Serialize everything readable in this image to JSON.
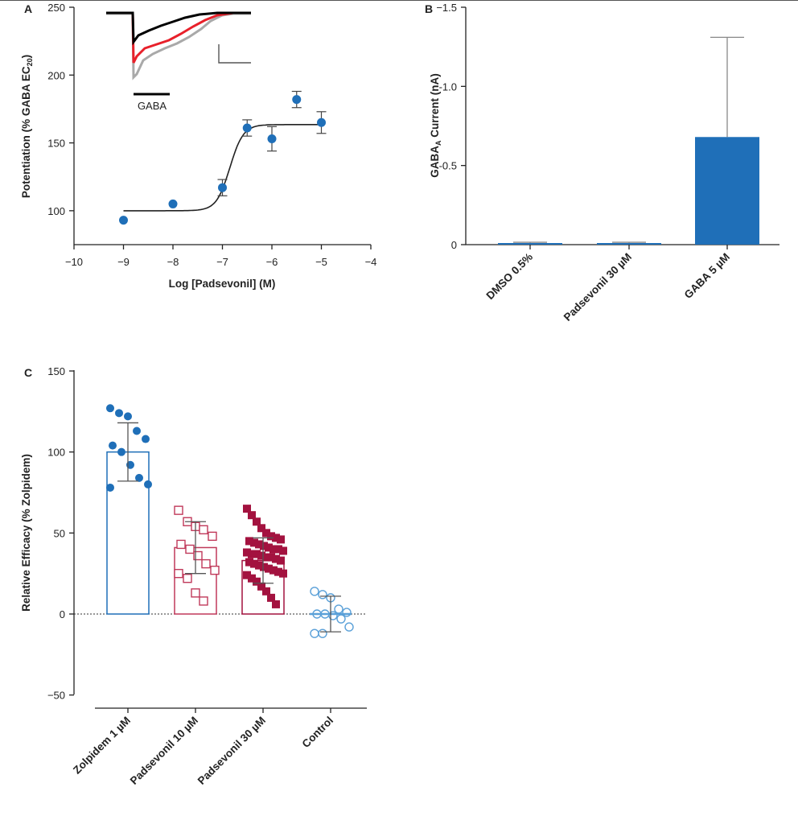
{
  "chart_data": [
    {
      "panel": "A",
      "type": "scatter",
      "xlabel": "Log [Padsevonil] (M)",
      "ylabel_main": "Potentiation (% GABA EC",
      "ylabel_sub": "20",
      "ylabel_end": ")",
      "xlim": [
        -10,
        -4
      ],
      "ylim": [
        75,
        250
      ],
      "xticks": [
        -10,
        -9,
        -8,
        -7,
        -6,
        -5,
        -4
      ],
      "xtick_labels": [
        "−10",
        "−9",
        "−8",
        "−7",
        "−6",
        "−5",
        "−4"
      ],
      "yticks": [
        100,
        150,
        200,
        250
      ],
      "ytick_labels": [
        "100",
        "150",
        "200",
        "250"
      ],
      "points": [
        {
          "x": -9,
          "y": 93,
          "err": 0
        },
        {
          "x": -8,
          "y": 105,
          "err": 0
        },
        {
          "x": -7,
          "y": 117,
          "err": 6
        },
        {
          "x": -6.5,
          "y": 161,
          "err": 6
        },
        {
          "x": -6,
          "y": 153,
          "err": 9
        },
        {
          "x": -5.5,
          "y": 182,
          "err": 6
        },
        {
          "x": -5,
          "y": 165,
          "err": 8
        }
      ],
      "fit": {
        "bottom": 100,
        "top": 163.5,
        "log_ec50": -6.85,
        "hill": 3.2,
        "x_from": -9,
        "x_to": -5
      },
      "inset_label": "GABA",
      "marker_color": "#1f6fb8",
      "trace_colors": [
        "#000000",
        "#e8202a",
        "#a9a9a9"
      ]
    },
    {
      "panel": "B",
      "type": "bar",
      "ylabel_pre": "GABA",
      "ylabel_sub": "A",
      "ylabel_post": " Current (nA)",
      "categories": [
        "DMSO 0.5%",
        "Padsevonil 30 µM",
        "GABA 5 µM"
      ],
      "values": [
        -0.01,
        -0.01,
        -0.68
      ],
      "errors": [
        0.005,
        0.005,
        0.63
      ],
      "ylim": [
        0,
        -1.5
      ],
      "y_inverted": true,
      "yticks": [
        0,
        -0.5,
        -1.0,
        -1.5
      ],
      "ytick_labels": [
        "0",
        "-0.5",
        "-1.0",
        "−1.5"
      ],
      "bar_color": "#1f6fb8"
    },
    {
      "panel": "C",
      "type": "bar",
      "ylabel": "Relative Efficacy (% Zolpidem)",
      "categories": [
        "Zolpidem 1 µM",
        "Padsevonil 10 µM",
        "Padsevonil 30 µM",
        "Control"
      ],
      "values": [
        100,
        41,
        33,
        0
      ],
      "errors": [
        18,
        16,
        14,
        11
      ],
      "ylim": [
        -50,
        150
      ],
      "yticks": [
        -50,
        0,
        50,
        100,
        150
      ],
      "ytick_labels": [
        "−50",
        "0",
        "50",
        "100",
        "150"
      ],
      "points": [
        [
          127,
          124,
          122,
          113,
          108,
          104,
          100,
          92,
          84,
          80,
          78
        ],
        [
          64,
          57,
          54,
          52,
          48,
          43,
          40,
          36,
          31,
          27,
          25,
          22,
          13,
          8
        ],
        [
          65,
          61,
          57,
          53,
          50,
          48,
          47,
          46,
          45,
          44,
          43,
          42,
          41,
          40,
          40,
          39,
          38,
          37,
          37,
          36,
          35,
          35,
          34,
          33,
          32,
          31,
          30,
          29,
          28,
          27,
          26,
          25,
          24,
          22,
          20,
          17,
          14,
          10,
          6
        ],
        [
          14,
          12,
          10,
          3,
          1,
          0,
          0,
          -1,
          -3,
          -8,
          -12,
          -12
        ]
      ],
      "series_colors": [
        "#1f6fb8",
        "#c0395a",
        "#a3123f",
        "#5aa0d8"
      ]
    }
  ]
}
